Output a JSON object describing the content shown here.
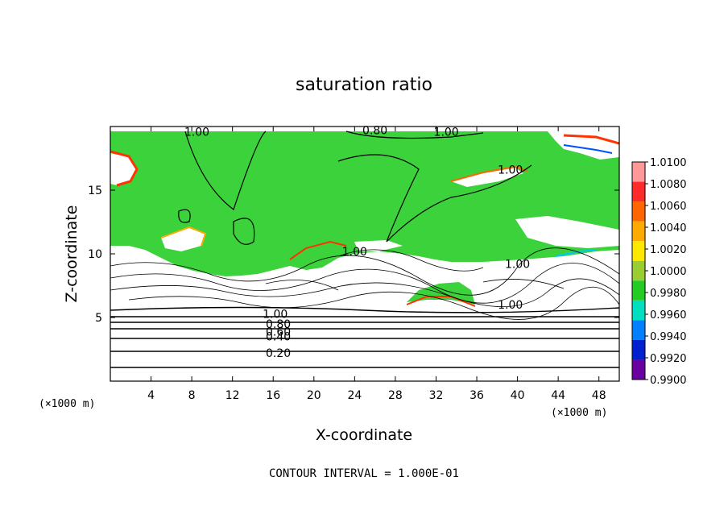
{
  "chart_data": {
    "type": "heatmap",
    "title": "saturation ratio",
    "xlabel": "X-coordinate",
    "ylabel": "Z-coordinate",
    "x_unit": "(×1000 m)",
    "z_unit": "(×1000 m)",
    "xlim": [
      0,
      50
    ],
    "ylim": [
      0,
      20
    ],
    "x_ticks": [
      4,
      8,
      12,
      16,
      20,
      24,
      28,
      32,
      36,
      40,
      44,
      48
    ],
    "y_ticks": [
      5,
      10,
      15
    ],
    "contour_interval_text": "CONTOUR INTERVAL = 1.000E-01",
    "contour_labels": [
      {
        "text": "1.00",
        "x": 8.5,
        "z": 19.6
      },
      {
        "text": "0.80",
        "x": 26.0,
        "z": 19.7
      },
      {
        "text": "1.00",
        "x": 33.0,
        "z": 19.6
      },
      {
        "text": "1.00",
        "x": 39.3,
        "z": 16.6
      },
      {
        "text": "1.00",
        "x": 24.0,
        "z": 10.2
      },
      {
        "text": "1.00",
        "x": 40.0,
        "z": 9.2
      },
      {
        "text": "1.00",
        "x": 39.3,
        "z": 6.0
      },
      {
        "text": "1.00",
        "x": 16.2,
        "z": 5.3
      },
      {
        "text": "0.80",
        "x": 16.5,
        "z": 4.5
      },
      {
        "text": "0.60",
        "x": 16.5,
        "z": 3.9
      },
      {
        "text": "0.40",
        "x": 16.5,
        "z": 3.5
      },
      {
        "text": "0.20",
        "x": 16.5,
        "z": 2.2
      }
    ],
    "colorbar": {
      "levels": [
        1.01,
        1.008,
        1.006,
        1.004,
        1.002,
        1.0,
        0.998,
        0.996,
        0.994,
        0.992,
        0.99
      ],
      "labels": [
        "1.0100",
        "1.0080",
        "1.0060",
        "1.0040",
        "1.0020",
        "1.0000",
        "0.9980",
        "0.9960",
        "0.9940",
        "0.9920",
        "0.9900"
      ],
      "colors": [
        "#ff9999",
        "#ff2a2a",
        "#ff6600",
        "#ffaa00",
        "#ffe800",
        "#9acd32",
        "#22cc22",
        "#00e0c0",
        "#0080ff",
        "#0020d0",
        "#6a00a0"
      ]
    },
    "fields": {
      "saturated_color": "#3cd23c",
      "supersaturated_color": "#ffffff",
      "subsaturated_color": "#ffffff"
    }
  }
}
